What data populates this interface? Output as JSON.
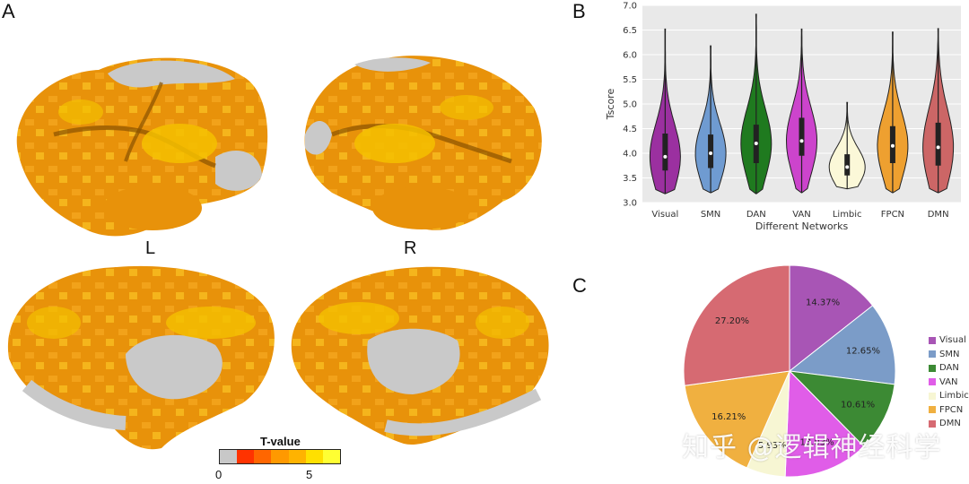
{
  "panels": {
    "a": "A",
    "b": "B",
    "c": "C"
  },
  "hemispheres": {
    "left": "L",
    "right": "R"
  },
  "colorbar": {
    "title": "T-value",
    "tick_min": "0",
    "tick_mid": "5",
    "colors": [
      "#c8c8c8",
      "#ff3300",
      "#ff6600",
      "#ff9900",
      "#ffb300",
      "#ffe000",
      "#ffff33"
    ]
  },
  "watermark": "知乎 @逻辑神经科学",
  "chart_data": [
    {
      "type": "violin",
      "ylabel": "Tscore",
      "xlabel": "Different Networks",
      "ylim": [
        3.0,
        7.0
      ],
      "yticks": [
        "3.0",
        "3.5",
        "4.0",
        "4.5",
        "5.0",
        "5.5",
        "6.0",
        "6.5",
        "7.0"
      ],
      "grid": true,
      "categories": [
        "Visual",
        "SMN",
        "DAN",
        "VAN",
        "Limbic",
        "FPCN",
        "DMN"
      ],
      "colors": [
        "#9b30a0",
        "#6f9bd1",
        "#1f7a1f",
        "#cc44cc",
        "#fbf8d8",
        "#eea030",
        "#cc6666"
      ],
      "min": [
        3.18,
        3.2,
        3.18,
        3.2,
        3.28,
        3.2,
        3.2
      ],
      "max": [
        6.52,
        6.18,
        6.82,
        6.52,
        5.03,
        6.46,
        6.53
      ],
      "q1": [
        3.65,
        3.7,
        3.8,
        3.95,
        3.55,
        3.8,
        3.75
      ],
      "median": [
        3.93,
        4.0,
        4.2,
        4.25,
        3.72,
        4.15,
        4.12
      ],
      "q3": [
        4.4,
        4.38,
        4.58,
        4.72,
        3.98,
        4.55,
        4.62
      ]
    },
    {
      "type": "pie",
      "categories": [
        "Visual",
        "SMN",
        "DAN",
        "VAN",
        "Limbic",
        "FPCN",
        "DMN"
      ],
      "values": [
        14.37,
        12.65,
        10.61,
        13.03,
        5.93,
        16.21,
        27.2
      ],
      "labels": [
        "14.37%",
        "12.65%",
        "10.61%",
        "13.03%",
        "5.93%",
        "16.21%",
        "27.20%"
      ],
      "colors": [
        "#a855b5",
        "#7b9cc8",
        "#3c8a34",
        "#e05de8",
        "#f7f6d3",
        "#f0b040",
        "#d66a72"
      ],
      "legend": "right"
    }
  ]
}
